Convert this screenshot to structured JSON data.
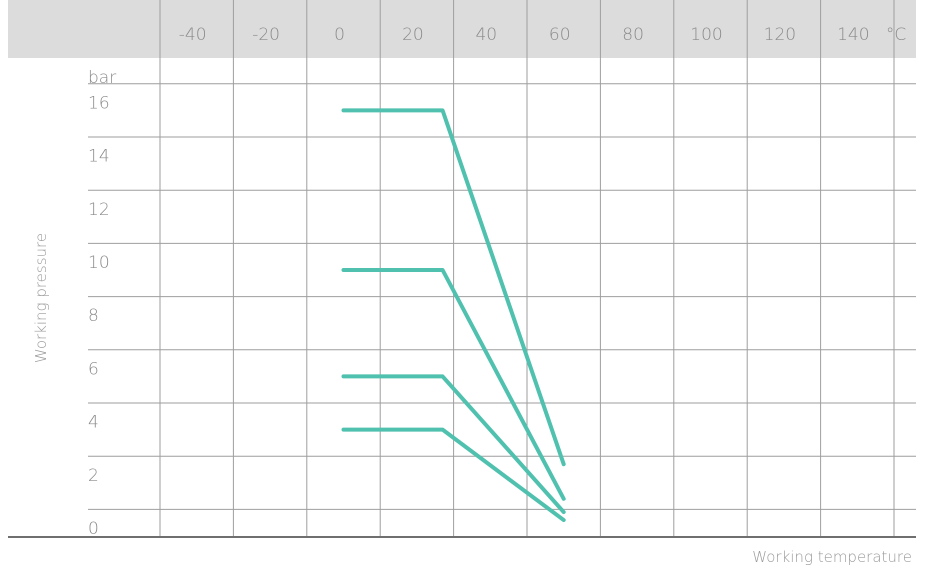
{
  "chart_data": {
    "type": "line",
    "title": "",
    "xlabel": "Working temperature",
    "ylabel": "Working pressure",
    "x_unit": "°C",
    "y_unit": "bar",
    "x_ticks": [
      -40,
      -20,
      0,
      20,
      40,
      60,
      80,
      100,
      120,
      140
    ],
    "y_ticks": [
      0,
      2,
      4,
      6,
      8,
      10,
      12,
      14,
      16
    ],
    "xlim": [
      -60,
      160
    ],
    "ylim": [
      -1,
      18
    ],
    "grid": true,
    "line_color": "#4fc1ae",
    "series": [
      {
        "points": [
          [
            0,
            16
          ],
          [
            27,
            16
          ],
          [
            60,
            2.7
          ]
        ]
      },
      {
        "points": [
          [
            0,
            10
          ],
          [
            27,
            10
          ],
          [
            60,
            1.4
          ]
        ]
      },
      {
        "points": [
          [
            0,
            6
          ],
          [
            27,
            6
          ],
          [
            60,
            0.9
          ]
        ]
      },
      {
        "points": [
          [
            0,
            4
          ],
          [
            27,
            4
          ],
          [
            60,
            0.6
          ]
        ]
      }
    ]
  },
  "colors": {
    "header_band": "#dcdcdc",
    "grid": "#9e9e9e",
    "baseline": "#6f6f6f",
    "text": "#8a8a8a"
  }
}
